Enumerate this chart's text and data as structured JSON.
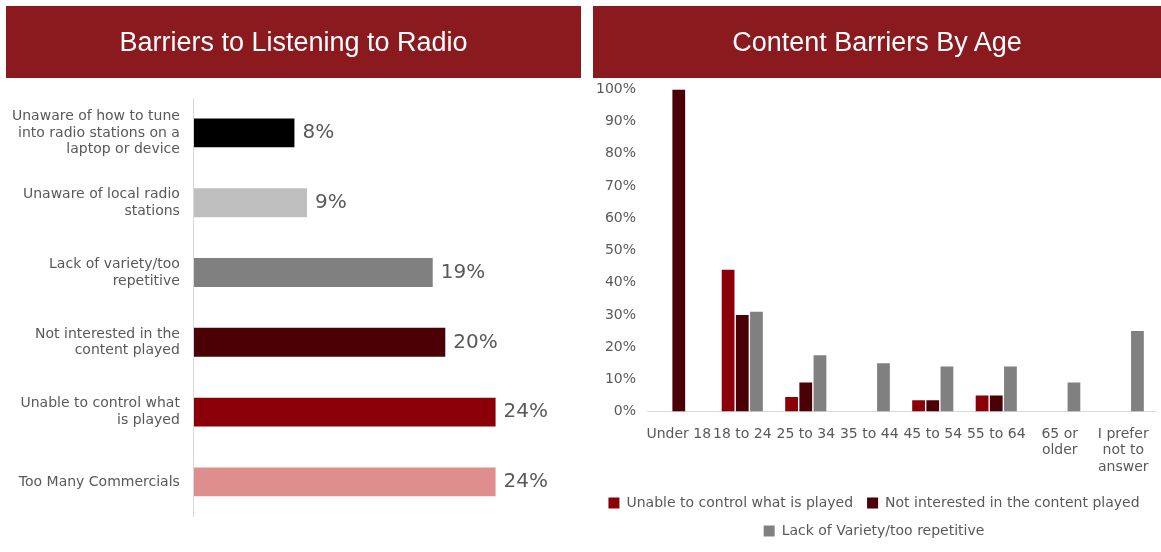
{
  "chart_data": [
    {
      "type": "bar",
      "title": "Barriers to Listening to Radio",
      "orientation": "horizontal",
      "categories": [
        "Unaware of how to tune into radio stations on a laptop or device",
        "Unaware of local radio stations",
        "Lack of variety/too repetitive",
        "Not interested in the content played",
        "Unable to control what is played",
        "Too Many Commercials"
      ],
      "values": [
        8,
        9,
        19,
        20,
        24,
        24
      ],
      "colors": [
        "#000000",
        "#bfbfbf",
        "#808080",
        "#4a0004",
        "#8b0008",
        "#df8e8e"
      ],
      "value_labels": [
        "8%",
        "9%",
        "19%",
        "20%",
        "24%",
        "24%"
      ],
      "tick_labels": "y",
      "grid": false,
      "legend": false
    },
    {
      "type": "bar",
      "title": "Content Barriers By Age",
      "categories": [
        "Under 18",
        "18 to 24",
        "25 to 34",
        "35 to 44",
        "45 to 54",
        "55 to 64",
        "65 or older",
        "I prefer not to answer"
      ],
      "series": [
        {
          "name": "Unable to control what is played",
          "color": "#8b0008",
          "values": [
            0,
            44,
            4.5,
            0,
            3.5,
            5,
            0,
            0
          ]
        },
        {
          "name": "Not interested in the content played",
          "color": "#4a0004",
          "values": [
            100,
            30,
            9,
            0,
            3.5,
            5,
            0,
            0
          ]
        },
        {
          "name": "Lack of Variety/too repetitive",
          "color": "#808080",
          "values": [
            0,
            31,
            17.5,
            15,
            14,
            14,
            9,
            25
          ]
        }
      ],
      "ylim": [
        0,
        100
      ],
      "yticks": [
        {
          "value": 0,
          "label": "0%"
        },
        {
          "value": 10,
          "label": "10%"
        },
        {
          "value": 20,
          "label": "20%"
        },
        {
          "value": 30,
          "label": "30%"
        },
        {
          "value": 40,
          "label": "40%"
        },
        {
          "value": 50,
          "label": "50%"
        },
        {
          "value": 60,
          "label": "60%"
        },
        {
          "value": 70,
          "label": "70%"
        },
        {
          "value": 80,
          "label": "80%"
        },
        {
          "value": 90,
          "label": "90%"
        },
        {
          "value": 100,
          "label": "100%"
        }
      ],
      "grid": false,
      "legend": "bottom"
    }
  ]
}
